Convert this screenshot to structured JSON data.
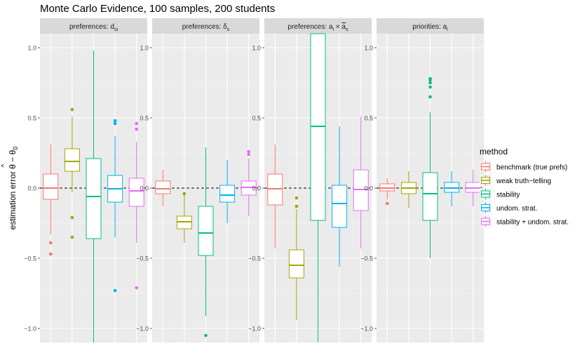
{
  "chart_data": {
    "type": "boxplot",
    "title": "Monte Carlo Evidence, 100 samples, 200 students",
    "ylabel_parts": {
      "pre": "estimation error ",
      "hat": "^",
      "theta": "θ",
      "minus": " − ",
      "theta0": "θ",
      "sub0": "0"
    },
    "ylim": [
      -1.1,
      1.1
    ],
    "y_ticks": [
      1.0,
      0.5,
      0.0,
      -0.5,
      -1.0
    ],
    "y_tick_labels": [
      "1.0",
      "0.5",
      "0.0",
      "−0.5",
      "−1.0"
    ],
    "reference_line": 0,
    "legend": {
      "title": "method",
      "position": "right"
    },
    "methods": [
      {
        "name": "benchmark (true prefs)",
        "color": "#F8766D"
      },
      {
        "name": "weak truth−telling",
        "color": "#A3A500"
      },
      {
        "name": "stability",
        "color": "#00BF7D"
      },
      {
        "name": "undom. strat.",
        "color": "#00B0F6"
      },
      {
        "name": "stability + undom. strat.",
        "color": "#E76BF3"
      }
    ],
    "panels": [
      {
        "strip": {
          "main": "preferences: d",
          "sub": "si"
        },
        "boxes": [
          {
            "q1": -0.08,
            "median": 0.0,
            "q3": 0.1,
            "whisker_low": -0.33,
            "whisker_high": 0.31,
            "outliers": [
              -0.39,
              -0.47
            ]
          },
          {
            "q1": 0.12,
            "median": 0.19,
            "q3": 0.28,
            "whisker_low": -0.03,
            "whisker_high": 0.51,
            "outliers": [
              0.56,
              -0.21,
              -0.35
            ]
          },
          {
            "q1": -0.36,
            "median": -0.06,
            "q3": 0.21,
            "whisker_low": -1.1,
            "whisker_high": 0.98,
            "outliers": []
          },
          {
            "q1": -0.1,
            "median": -0.005,
            "q3": 0.09,
            "whisker_low": -0.35,
            "whisker_high": 0.37,
            "outliers": [
              0.46,
              0.48,
              -0.73
            ]
          },
          {
            "q1": -0.13,
            "median": -0.02,
            "q3": 0.07,
            "whisker_low": -0.39,
            "whisker_high": 0.33,
            "outliers": [
              0.42,
              0.46,
              -0.71
            ]
          }
        ]
      },
      {
        "strip": {
          "main": "preferences: δ",
          "sub": "s"
        },
        "boxes": [
          {
            "q1": -0.04,
            "median": -0.005,
            "q3": 0.05,
            "whisker_low": -0.13,
            "whisker_high": 0.13,
            "outliers": []
          },
          {
            "q1": -0.29,
            "median": -0.24,
            "q3": -0.2,
            "whisker_low": -0.39,
            "whisker_high": -0.05,
            "outliers": [
              -0.04
            ]
          },
          {
            "q1": -0.48,
            "median": -0.32,
            "q3": -0.13,
            "whisker_low": -0.91,
            "whisker_high": 0.29,
            "outliers": [
              -1.05
            ]
          },
          {
            "q1": -0.1,
            "median": -0.05,
            "q3": 0.02,
            "whisker_low": -0.25,
            "whisker_high": 0.2,
            "outliers": []
          },
          {
            "q1": -0.05,
            "median": 0.005,
            "q3": 0.05,
            "whisker_low": -0.2,
            "whisker_high": 0.21,
            "outliers": [
              0.24,
              0.26
            ]
          }
        ]
      },
      {
        "strip": {
          "main": "preferences: a",
          "sub": "i",
          "times": " × ",
          "over": "a",
          "oversub": "s"
        },
        "boxes": [
          {
            "q1": -0.12,
            "median": -0.005,
            "q3": 0.1,
            "whisker_low": -0.43,
            "whisker_high": 0.31,
            "outliers": []
          },
          {
            "q1": -0.64,
            "median": -0.55,
            "q3": -0.44,
            "whisker_low": -0.94,
            "whisker_high": -0.15,
            "outliers": [
              -0.07,
              -0.13
            ]
          },
          {
            "q1": -0.23,
            "median": 0.44,
            "q3": 1.1,
            "whisker_low": -1.1,
            "whisker_high": 1.1,
            "outliers": []
          },
          {
            "q1": -0.28,
            "median": -0.11,
            "q3": 0.02,
            "whisker_low": -0.56,
            "whisker_high": 0.44,
            "outliers": []
          },
          {
            "q1": -0.16,
            "median": -0.01,
            "q3": 0.13,
            "whisker_low": -0.43,
            "whisker_high": 0.51,
            "outliers": []
          }
        ]
      },
      {
        "strip": {
          "main": "priorities: a",
          "sub": "i"
        },
        "boxes": [
          {
            "q1": -0.02,
            "median": 0.0,
            "q3": 0.03,
            "whisker_low": -0.08,
            "whisker_high": 0.07,
            "outliers": [
              -0.11
            ]
          },
          {
            "q1": -0.04,
            "median": 0.0,
            "q3": 0.04,
            "whisker_low": -0.14,
            "whisker_high": 0.12,
            "outliers": []
          },
          {
            "q1": -0.23,
            "median": -0.04,
            "q3": 0.11,
            "whisker_low": -0.5,
            "whisker_high": 0.54,
            "outliers": [
              0.65,
              0.72,
              0.75,
              0.77,
              0.78
            ]
          },
          {
            "q1": -0.03,
            "median": 0.0,
            "q3": 0.04,
            "whisker_low": -0.13,
            "whisker_high": 0.12,
            "outliers": []
          },
          {
            "q1": -0.03,
            "median": 0.0,
            "q3": 0.04,
            "whisker_low": -0.13,
            "whisker_high": 0.13,
            "outliers": []
          }
        ]
      }
    ]
  }
}
